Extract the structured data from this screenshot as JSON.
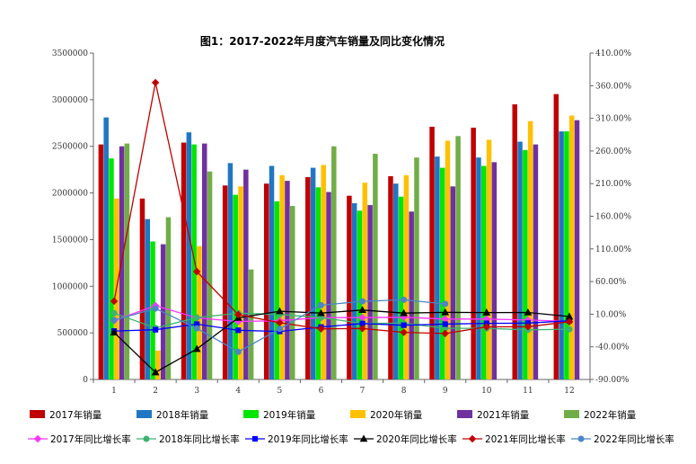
{
  "chart_data": {
    "type": "bar",
    "title": "图1：2017-2022年月度汽车销量及同比变化情况",
    "categories": [
      "1",
      "2",
      "3",
      "4",
      "5",
      "6",
      "7",
      "8",
      "9",
      "10",
      "11",
      "12"
    ],
    "y_left": {
      "min": 0,
      "max": 3500000,
      "step": 500000,
      "ticks": [
        "0",
        "500000",
        "1000000",
        "1500000",
        "2000000",
        "2500000",
        "3000000",
        "3500000"
      ]
    },
    "y_right": {
      "min": -90,
      "max": 410,
      "step": 50,
      "ticks": [
        "-90.00%",
        "-40.00%",
        "10.00%",
        "60.00%",
        "110.00%",
        "160.00%",
        "210.00%",
        "260.00%",
        "310.00%",
        "360.00%",
        "410.00%"
      ]
    },
    "series": [
      {
        "name": "2017年销量",
        "color": "#C00000",
        "values": [
          2520000,
          1940000,
          2540000,
          2080000,
          2100000,
          2170000,
          1970000,
          2180000,
          2710000,
          2700000,
          2950000,
          3060000
        ]
      },
      {
        "name": "2018年销量",
        "color": "#1F77C4",
        "values": [
          2810000,
          1720000,
          2650000,
          2320000,
          2290000,
          2270000,
          1890000,
          2100000,
          2390000,
          2380000,
          2550000,
          2660000
        ]
      },
      {
        "name": "2019年销量",
        "color": "#00E600",
        "values": [
          2370000,
          1480000,
          2520000,
          1980000,
          1910000,
          2060000,
          1810000,
          1960000,
          2270000,
          2290000,
          2460000,
          2660000
        ]
      },
      {
        "name": "2020年销量",
        "color": "#FFC000",
        "values": [
          1940000,
          310000,
          1430000,
          2070000,
          2190000,
          2300000,
          2110000,
          2190000,
          2560000,
          2570000,
          2770000,
          2830000
        ]
      },
      {
        "name": "2021年销量",
        "color": "#7030A0",
        "values": [
          2500000,
          1450000,
          2530000,
          2250000,
          2130000,
          2010000,
          1870000,
          1800000,
          2070000,
          2330000,
          2520000,
          2780000
        ]
      },
      {
        "name": "2022年销量",
        "color": "#70AD47",
        "values": [
          2530000,
          1740000,
          2230000,
          1180000,
          1860000,
          2500000,
          2420000,
          2380000,
          2610000,
          null,
          null,
          null
        ]
      }
    ],
    "line_series": [
      {
        "name": "2017年同比增长率",
        "color": "#FF33FF",
        "marker": "diamond",
        "values": [
          0.2,
          23.1,
          4.4,
          -1.2,
          -0.1,
          4.7,
          4.8,
          5.3,
          2.6,
          2.6,
          1.0,
          -1.0
        ]
      },
      {
        "name": "2018年同比增长率",
        "color": "#3CB371",
        "marker": "circle",
        "values": [
          11.6,
          -11.1,
          4.7,
          11.5,
          9.6,
          4.8,
          -4.0,
          -3.8,
          -11.6,
          -11.7,
          -13.9,
          -13.0
        ]
      },
      {
        "name": "2019年同比增长率",
        "color": "#0000FF",
        "marker": "square",
        "values": [
          -15.8,
          -13.8,
          -5.2,
          -14.6,
          -16.4,
          -9.7,
          -4.3,
          -6.9,
          -5.2,
          -4.0,
          -3.6,
          -0.1
        ]
      },
      {
        "name": "2020年同比增长率",
        "color": "#000000",
        "marker": "triangle",
        "values": [
          -18.0,
          -79.1,
          -43.3,
          4.4,
          14.5,
          11.6,
          16.4,
          11.6,
          12.8,
          12.5,
          12.6,
          6.4
        ]
      },
      {
        "name": "2021年同比增长率",
        "color": "#C00000",
        "marker": "diamond",
        "values": [
          29.9,
          364.8,
          75.3,
          9.3,
          -3.1,
          -12.4,
          -11.9,
          -17.8,
          -19.6,
          -9.4,
          -9.1,
          -1.6
        ]
      },
      {
        "name": "2022年同比增长率",
        "color": "#4A86C8",
        "marker": "circle",
        "values": [
          0.9,
          18.7,
          -11.7,
          -47.6,
          -12.6,
          23.8,
          29.7,
          32.1,
          25.7,
          null,
          null,
          null
        ]
      }
    ]
  }
}
